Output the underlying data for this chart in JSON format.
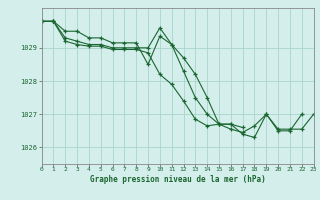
{
  "title": "Graphe pression niveau de la mer (hPa)",
  "bg_color": "#d4eeeb",
  "grid_color": "#a8d4cc",
  "line_color": "#1a6630",
  "xlim": [
    0,
    23
  ],
  "ylim": [
    1025.5,
    1030.2
  ],
  "yticks": [
    1026,
    1027,
    1028,
    1029
  ],
  "xticks": [
    0,
    1,
    2,
    3,
    4,
    5,
    6,
    7,
    8,
    9,
    10,
    11,
    12,
    13,
    14,
    15,
    16,
    17,
    18,
    19,
    20,
    21,
    22,
    23
  ],
  "series": [
    [
      1029.8,
      1029.8,
      1029.5,
      1029.5,
      1029.3,
      1029.3,
      1029.15,
      1029.15,
      1029.15,
      1028.5,
      1029.35,
      1029.1,
      1028.3,
      1027.5,
      1027.0,
      1026.7,
      1026.7,
      1026.4,
      1026.3,
      1027.0,
      1026.5,
      1026.5,
      1027.0,
      null
    ],
    [
      1029.8,
      1029.8,
      1029.3,
      1029.2,
      1029.1,
      1029.1,
      1029.0,
      1029.0,
      1029.0,
      1029.0,
      1029.6,
      1029.1,
      1028.7,
      1028.2,
      1027.5,
      1026.7,
      1026.7,
      1026.6,
      null,
      null,
      null,
      null,
      null,
      null
    ],
    [
      1029.8,
      1029.8,
      1029.2,
      1029.1,
      1029.05,
      1029.05,
      1028.95,
      1028.95,
      1028.95,
      1028.85,
      1028.2,
      1027.9,
      1027.4,
      1026.85,
      1026.65,
      1026.7,
      1026.55,
      1026.45,
      1026.65,
      1027.0,
      1026.55,
      1026.55,
      1026.55,
      1027.0
    ]
  ]
}
